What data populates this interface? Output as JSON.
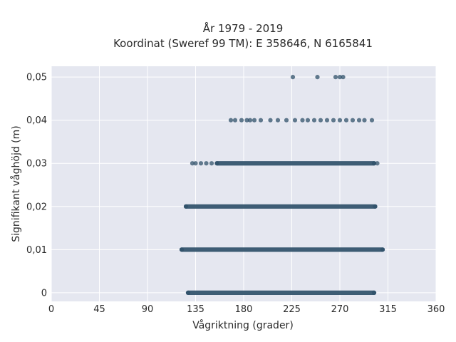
{
  "chart_data": {
    "type": "scatter",
    "title_line1": "År 1979 - 2019",
    "title_line2": "Koordinat (Sweref 99 TM): E 358646, N 6165841",
    "xlabel": "Vågriktning (grader)",
    "ylabel": "Signifikant våghöjd (m)",
    "xlim": [
      0,
      360
    ],
    "ylim": [
      -0.002,
      0.0525
    ],
    "x_ticks": [
      0,
      45,
      90,
      135,
      180,
      225,
      270,
      315,
      360
    ],
    "x_tick_labels": [
      "0",
      "45",
      "90",
      "135",
      "180",
      "225",
      "270",
      "315",
      "360"
    ],
    "y_ticks": [
      0,
      0.01,
      0.02,
      0.03,
      0.04,
      0.05
    ],
    "y_tick_labels": [
      "0",
      "0,01",
      "0,02",
      "0,03",
      "0,04",
      "0,05"
    ],
    "grid": true,
    "marker_color": "#2f5069",
    "background_color": "#e5e7f0",
    "bands": [
      {
        "y": 0.0,
        "x_min": 128,
        "x_max": 302
      },
      {
        "y": 0.01,
        "x_min": 122,
        "x_max": 310
      },
      {
        "y": 0.02,
        "x_min": 126,
        "x_max": 303
      },
      {
        "y": 0.03,
        "x_min": 155,
        "x_max": 302
      }
    ],
    "isolated_points": [
      {
        "x": 132,
        "y": 0.03
      },
      {
        "x": 135,
        "y": 0.03
      },
      {
        "x": 140,
        "y": 0.03
      },
      {
        "x": 145,
        "y": 0.03
      },
      {
        "x": 150,
        "y": 0.03
      },
      {
        "x": 305,
        "y": 0.03
      },
      {
        "x": 168,
        "y": 0.04
      },
      {
        "x": 172,
        "y": 0.04
      },
      {
        "x": 178,
        "y": 0.04
      },
      {
        "x": 183,
        "y": 0.04
      },
      {
        "x": 186,
        "y": 0.04
      },
      {
        "x": 190,
        "y": 0.04
      },
      {
        "x": 196,
        "y": 0.04
      },
      {
        "x": 205,
        "y": 0.04
      },
      {
        "x": 212,
        "y": 0.04
      },
      {
        "x": 220,
        "y": 0.04
      },
      {
        "x": 228,
        "y": 0.04
      },
      {
        "x": 235,
        "y": 0.04
      },
      {
        "x": 240,
        "y": 0.04
      },
      {
        "x": 246,
        "y": 0.04
      },
      {
        "x": 252,
        "y": 0.04
      },
      {
        "x": 258,
        "y": 0.04
      },
      {
        "x": 264,
        "y": 0.04
      },
      {
        "x": 270,
        "y": 0.04
      },
      {
        "x": 276,
        "y": 0.04
      },
      {
        "x": 282,
        "y": 0.04
      },
      {
        "x": 288,
        "y": 0.04
      },
      {
        "x": 293,
        "y": 0.04
      },
      {
        "x": 300,
        "y": 0.04
      },
      {
        "x": 226,
        "y": 0.05
      },
      {
        "x": 249,
        "y": 0.05
      },
      {
        "x": 266,
        "y": 0.05
      },
      {
        "x": 270,
        "y": 0.05
      },
      {
        "x": 273,
        "y": 0.05
      }
    ]
  }
}
